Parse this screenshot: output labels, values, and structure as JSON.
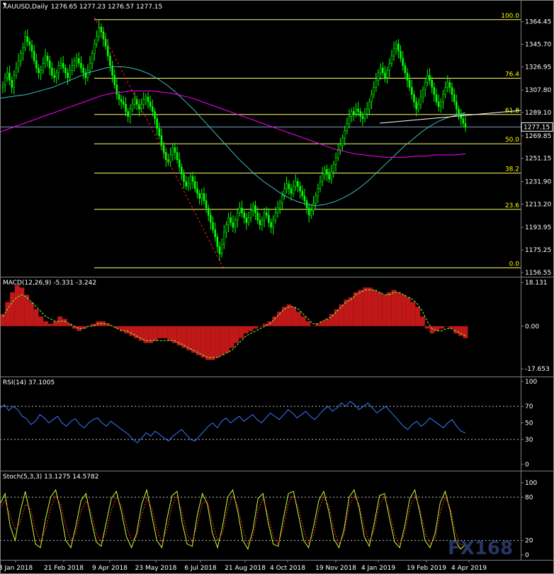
{
  "chart_data": {
    "type": "candlestick-with-indicators",
    "symbol_header": "XAUUSD,Daily",
    "ohlc_header": "1276.65 1277.23 1276.57 1277.15",
    "current_price": "1277.15",
    "price_axis": {
      "ylim": [
        1156.55,
        1373.0
      ],
      "ticks": [
        "1364.45",
        "1345.70",
        "1326.95",
        "1307.80",
        "1289.10",
        "1269.85",
        "1251.15",
        "1231.90",
        "1213.20",
        "1193.95",
        "1175.25",
        "1156.55"
      ]
    },
    "x_tick_labels": [
      "8 Jan 2018",
      "21 Feb 2018",
      "9 Apr 2018",
      "23 May 2018",
      "6 Jul 2018",
      "21 Aug 2018",
      "4 Oct 2018",
      "19 Nov 2018",
      "4 Jan 2019",
      "19 Feb 2019",
      "4 Apr 2019"
    ],
    "fibonacci": {
      "high": 1366.1,
      "low": 1160.4,
      "levels": [
        {
          "label": "100.0",
          "value": 1366.1
        },
        {
          "label": "76.4",
          "value": 1317.6
        },
        {
          "label": "61.8",
          "value": 1287.5
        },
        {
          "label": "50.0",
          "value": 1263.2
        },
        {
          "label": "38.2",
          "value": 1239.0
        },
        {
          "label": "23.6",
          "value": 1208.9
        },
        {
          "label": "0.0",
          "value": 1160.4
        }
      ]
    },
    "price_closes": [
      1312,
      1318,
      1322,
      1316,
      1310,
      1320,
      1326,
      1332,
      1338,
      1343,
      1352,
      1348,
      1345,
      1340,
      1332,
      1326,
      1322,
      1324,
      1330,
      1336,
      1332,
      1326,
      1320,
      1318,
      1322,
      1328,
      1330,
      1326,
      1322,
      1318,
      1324,
      1328,
      1332,
      1334,
      1330,
      1326,
      1322,
      1318,
      1324,
      1330,
      1338,
      1346,
      1352,
      1360,
      1356,
      1350,
      1344,
      1336,
      1328,
      1320,
      1312,
      1304,
      1300,
      1298,
      1296,
      1290,
      1286,
      1292,
      1296,
      1300,
      1296,
      1292,
      1296,
      1300,
      1302,
      1298,
      1294,
      1290,
      1284,
      1276,
      1270,
      1262,
      1256,
      1250,
      1248,
      1254,
      1260,
      1256,
      1250,
      1244,
      1238,
      1232,
      1228,
      1230,
      1236,
      1232,
      1226,
      1222,
      1218,
      1222,
      1216,
      1210,
      1204,
      1198,
      1192,
      1186,
      1178,
      1172,
      1180,
      1190,
      1196,
      1202,
      1198,
      1194,
      1200,
      1206,
      1210,
      1206,
      1202,
      1198,
      1202,
      1208,
      1212,
      1206,
      1200,
      1196,
      1200,
      1206,
      1204,
      1198,
      1194,
      1200,
      1206,
      1210,
      1214,
      1220,
      1226,
      1230,
      1226,
      1222,
      1228,
      1232,
      1228,
      1224,
      1220,
      1216,
      1210,
      1204,
      1208,
      1214,
      1220,
      1226,
      1232,
      1238,
      1242,
      1238,
      1234,
      1240,
      1246,
      1252,
      1258,
      1262,
      1268,
      1274,
      1280,
      1286,
      1290,
      1288,
      1292,
      1290,
      1286,
      1284,
      1288,
      1292,
      1298,
      1304,
      1310,
      1316,
      1322,
      1326,
      1322,
      1318,
      1324,
      1330,
      1336,
      1342,
      1346,
      1340,
      1334,
      1328,
      1322,
      1316,
      1310,
      1304,
      1298,
      1292,
      1296,
      1302,
      1308,
      1314,
      1320,
      1316,
      1310,
      1304,
      1298,
      1294,
      1298,
      1304,
      1310,
      1314,
      1310,
      1304,
      1298,
      1292,
      1288,
      1284,
      1280,
      1277
    ],
    "ma_fast": [
      1301,
      1302,
      1303,
      1304,
      1306,
      1308,
      1310,
      1313,
      1316,
      1319,
      1322,
      1324,
      1326,
      1327,
      1327,
      1326,
      1324,
      1321,
      1317,
      1312,
      1306,
      1299,
      1292,
      1284,
      1276,
      1268,
      1260,
      1252,
      1245,
      1238,
      1232,
      1227,
      1222,
      1218,
      1215,
      1213,
      1212,
      1213,
      1215,
      1218,
      1222,
      1227,
      1233,
      1240,
      1247,
      1254,
      1261,
      1267,
      1273,
      1278,
      1282,
      1285,
      1287,
      1289
    ],
    "ma_slow": [
      1273,
      1276,
      1279,
      1282,
      1285,
      1288,
      1291,
      1294,
      1297,
      1300,
      1303,
      1305,
      1306,
      1307,
      1307,
      1307,
      1306,
      1305,
      1303,
      1301,
      1298,
      1295,
      1292,
      1289,
      1286,
      1283,
      1280,
      1277,
      1274,
      1271,
      1268,
      1265,
      1262,
      1259,
      1257,
      1255,
      1254,
      1253,
      1252,
      1252,
      1252,
      1253,
      1253,
      1254,
      1254,
      1254,
      1255
    ],
    "macd": {
      "header": "MACD(12,26,9) -5.331 -3.242",
      "ylim": [
        -17.653,
        18.131
      ],
      "ticks": [
        "18.131",
        "0.00",
        "-17.653"
      ],
      "histogram": [
        5,
        10,
        14,
        17,
        16,
        13,
        10,
        7,
        4,
        2,
        1,
        2,
        4,
        3,
        1,
        -1,
        -2,
        -1,
        0,
        1,
        2,
        2,
        1,
        0,
        -1,
        -2,
        -3,
        -4,
        -5,
        -6,
        -7,
        -7,
        -6,
        -5,
        -5,
        -6,
        -7,
        -8,
        -9,
        -10,
        -11,
        -12,
        -13,
        -14,
        -14,
        -13,
        -12,
        -11,
        -9,
        -7,
        -5,
        -3,
        -2,
        -1,
        0,
        1,
        2,
        4,
        6,
        8,
        9,
        8,
        6,
        4,
        2,
        0,
        1,
        2,
        3,
        5,
        7,
        9,
        11,
        12,
        14,
        15,
        16,
        16,
        15,
        14,
        13,
        14,
        15,
        14,
        13,
        12,
        10,
        8,
        4,
        -1,
        -3,
        -2,
        -1,
        0,
        -1,
        -3,
        -4,
        -5
      ],
      "signal": [
        4,
        7,
        10,
        12,
        13,
        12,
        10,
        8,
        6,
        4,
        3,
        2,
        2,
        2,
        1,
        0,
        -1,
        -1,
        0,
        0,
        1,
        1,
        1,
        0,
        -1,
        -2,
        -2,
        -3,
        -4,
        -5,
        -6,
        -6,
        -6,
        -6,
        -6,
        -6,
        -6,
        -7,
        -8,
        -9,
        -10,
        -11,
        -12,
        -13,
        -13,
        -13,
        -12,
        -11,
        -10,
        -8,
        -6,
        -4,
        -3,
        -2,
        -1,
        0,
        1,
        3,
        5,
        7,
        8,
        8,
        7,
        5,
        3,
        1,
        1,
        2,
        3,
        4,
        6,
        8,
        10,
        11,
        13,
        14,
        15,
        15,
        15,
        14,
        13,
        13,
        14,
        14,
        13,
        12,
        11,
        9,
        6,
        2,
        -1,
        -2,
        -2,
        -1,
        -1,
        -2,
        -3,
        -4
      ]
    },
    "rsi": {
      "header": "RSI(14) 37.1005",
      "ylim": [
        0,
        100
      ],
      "ticks": [
        "100",
        "70",
        "50",
        "30",
        "0"
      ],
      "levels": [
        70,
        30
      ],
      "values": [
        68,
        72,
        65,
        70,
        66,
        58,
        55,
        48,
        52,
        60,
        56,
        50,
        54,
        58,
        50,
        46,
        52,
        55,
        48,
        44,
        50,
        54,
        56,
        50,
        46,
        52,
        48,
        44,
        40,
        36,
        30,
        26,
        32,
        38,
        34,
        40,
        36,
        32,
        28,
        34,
        38,
        42,
        36,
        30,
        28,
        34,
        40,
        46,
        50,
        44,
        52,
        56,
        50,
        54,
        58,
        52,
        56,
        60,
        54,
        50,
        56,
        62,
        58,
        54,
        60,
        66,
        62,
        56,
        60,
        64,
        58,
        54,
        60,
        66,
        70,
        64,
        68,
        74,
        70,
        76,
        72,
        66,
        70,
        74,
        68,
        62,
        66,
        70,
        64,
        58,
        52,
        46,
        42,
        48,
        52,
        46,
        50,
        56,
        52,
        48,
        44,
        50,
        54,
        46,
        40,
        38
      ]
    },
    "stoch": {
      "header": "Stoch(5,3,3) 13.1275 14.5782",
      "ylim": [
        0,
        100
      ],
      "ticks": [
        "100",
        "80",
        "20",
        "0"
      ],
      "levels": [
        80,
        20
      ],
      "main": [
        70,
        85,
        40,
        20,
        60,
        88,
        55,
        15,
        10,
        50,
        80,
        90,
        60,
        20,
        10,
        40,
        75,
        85,
        50,
        18,
        12,
        45,
        78,
        88,
        60,
        25,
        10,
        30,
        70,
        90,
        55,
        20,
        10,
        50,
        82,
        88,
        45,
        15,
        12,
        55,
        85,
        70,
        30,
        10,
        40,
        80,
        90,
        60,
        20,
        8,
        35,
        78,
        85,
        45,
        15,
        12,
        50,
        85,
        88,
        55,
        20,
        10,
        40,
        75,
        88,
        60,
        22,
        10,
        35,
        80,
        90,
        65,
        25,
        12,
        45,
        82,
        85,
        50,
        18,
        10,
        40,
        78,
        90,
        58,
        20,
        10,
        30,
        72,
        88,
        60,
        20,
        8,
        14
      ],
      "signal": [
        65,
        75,
        55,
        35,
        45,
        70,
        65,
        35,
        18,
        35,
        65,
        82,
        70,
        40,
        20,
        30,
        60,
        75,
        60,
        30,
        18,
        32,
        62,
        80,
        68,
        40,
        20,
        25,
        55,
        78,
        65,
        35,
        18,
        35,
        68,
        82,
        58,
        28,
        18,
        42,
        72,
        74,
        45,
        20,
        30,
        65,
        82,
        68,
        35,
        15,
        25,
        62,
        78,
        55,
        25,
        15,
        38,
        72,
        82,
        65,
        35,
        15,
        28,
        62,
        80,
        68,
        35,
        15,
        28,
        68,
        82,
        70,
        38,
        18,
        35,
        70,
        80,
        60,
        28,
        14,
        30,
        65,
        82,
        65,
        32,
        15,
        22,
        58,
        80,
        65,
        32,
        14,
        14
      ]
    }
  },
  "watermark": "FX168"
}
